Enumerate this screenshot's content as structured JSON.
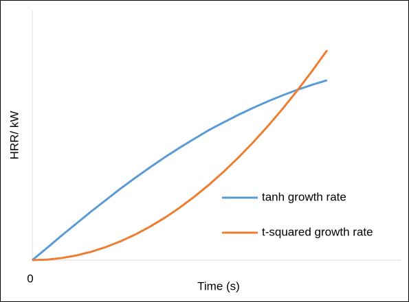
{
  "chart_data": {
    "type": "line",
    "x_label": "Time (s)",
    "y_label": "HRR/ kW",
    "x": [
      0,
      0.5,
      1,
      1.5,
      2,
      2.5,
      3,
      3.5,
      4,
      4.5,
      5,
      5.5,
      6,
      6.5,
      7,
      7.5,
      8,
      8.5,
      9,
      9.5,
      10
    ],
    "series": [
      {
        "name": "tanh growth rate",
        "color": "#5b9bd5",
        "values": [
          0,
          4.9,
          9.9,
          14.7,
          19.5,
          24.1,
          28.7,
          33.0,
          37.2,
          41.2,
          45.0,
          48.6,
          52.1,
          55.2,
          58.2,
          61.0,
          63.6,
          66.0,
          68.2,
          70.2,
          72.0
        ]
      },
      {
        "name": "t-squared growth rate",
        "color": "#ed7d31",
        "values": [
          0,
          0.21,
          0.84,
          1.89,
          3.36,
          5.25,
          7.56,
          10.29,
          13.44,
          17.01,
          21,
          25.41,
          30.24,
          35.49,
          41.16,
          47.25,
          53.76,
          60.69,
          68.04,
          75.81,
          84
        ]
      }
    ],
    "xlim": [
      0,
      12.5
    ],
    "ylim": [
      0,
      100
    ],
    "xticks": [
      0
    ],
    "legend": "right"
  }
}
